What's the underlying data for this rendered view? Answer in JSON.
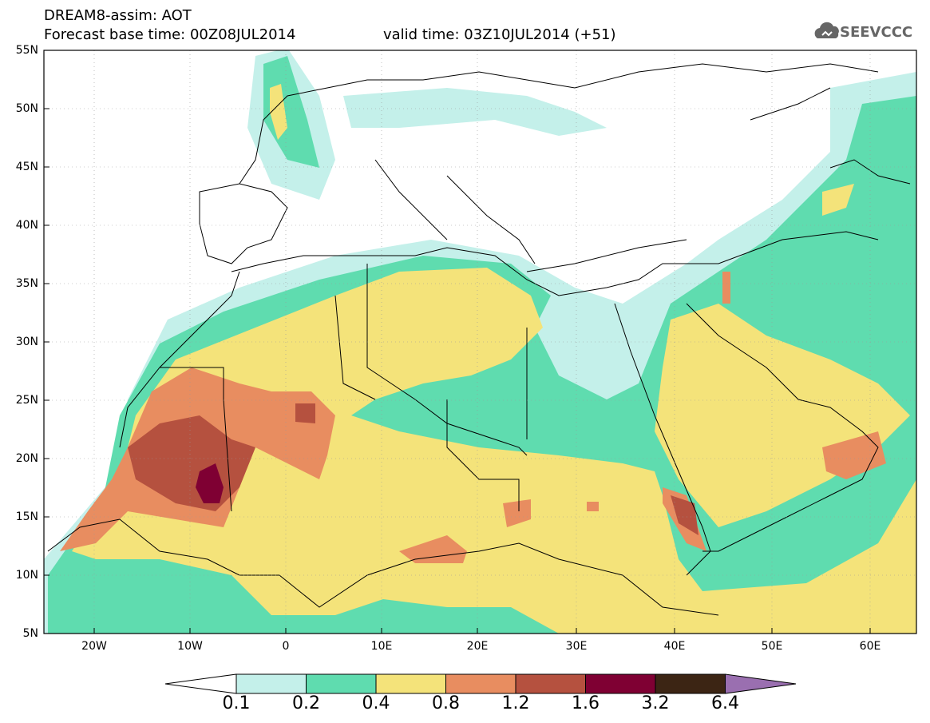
{
  "title": {
    "line1": "DREAM8-assim: AOT",
    "line2": "Forecast base time: 00Z08JUL2014",
    "valid": "valid time: 03Z10JUL2014 (+51)"
  },
  "logo": {
    "text": "SEEVCCC",
    "icon": "cloud-icon"
  },
  "map": {
    "lat_labels": [
      "55N",
      "50N",
      "45N",
      "40N",
      "35N",
      "30N",
      "25N",
      "20N",
      "15N",
      "10N",
      "5N"
    ],
    "lon_labels": [
      "20W",
      "10W",
      "0",
      "10E",
      "20E",
      "30E",
      "40E",
      "50E",
      "60E"
    ],
    "extent": {
      "lon": [
        -25,
        65
      ],
      "lat": [
        5,
        55
      ]
    }
  },
  "colorbar": {
    "levels": [
      "0.1",
      "0.2",
      "0.4",
      "0.8",
      "1.2",
      "1.6",
      "3.2",
      "6.4"
    ],
    "colors": [
      "#ffffff",
      "#c4f0ea",
      "#5fdcaf",
      "#f4e37a",
      "#e88d60",
      "#b5513f",
      "#7f0033",
      "#3c2514",
      "#9a6fb0"
    ]
  }
}
